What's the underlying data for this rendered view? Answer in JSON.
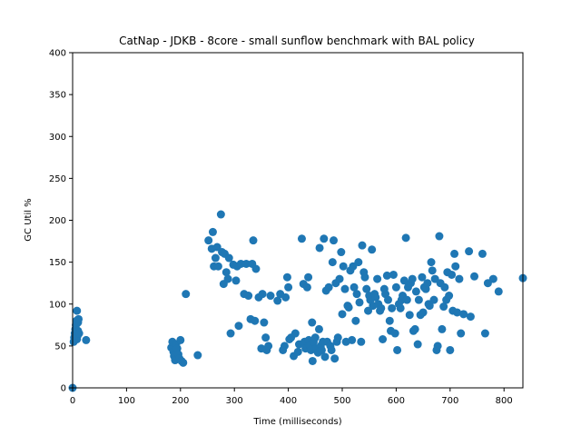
{
  "chart_data": {
    "type": "scatter",
    "title": "CatNap - JDKB - 8core -  small sunflow benchmark with BAL policy",
    "xlabel": "Time (milliseconds)",
    "ylabel": "GC Util %",
    "xlim": [
      0,
      835
    ],
    "ylim": [
      0,
      400
    ],
    "xticks": [
      0,
      100,
      200,
      300,
      400,
      500,
      600,
      700,
      800
    ],
    "yticks": [
      0,
      50,
      100,
      150,
      200,
      250,
      300,
      350,
      400
    ],
    "grid": false,
    "marker_color": "#1f77b4",
    "series": [
      {
        "points": [
          [
            0,
            0
          ],
          [
            2,
            55
          ],
          [
            3,
            60
          ],
          [
            4,
            65
          ],
          [
            5,
            70
          ],
          [
            6,
            75
          ],
          [
            7,
            80
          ],
          [
            8,
            92
          ],
          [
            8,
            58
          ],
          [
            9,
            62
          ],
          [
            10,
            68
          ],
          [
            10,
            78
          ],
          [
            11,
            82
          ],
          [
            12,
            65
          ],
          [
            25,
            57
          ],
          [
            183,
            48
          ],
          [
            185,
            55
          ],
          [
            187,
            43
          ],
          [
            188,
            38
          ],
          [
            190,
            33
          ],
          [
            192,
            52
          ],
          [
            194,
            47
          ],
          [
            196,
            40
          ],
          [
            198,
            35
          ],
          [
            200,
            57
          ],
          [
            202,
            32
          ],
          [
            205,
            30
          ],
          [
            210,
            112
          ],
          [
            232,
            39
          ],
          [
            252,
            176
          ],
          [
            258,
            166
          ],
          [
            260,
            186
          ],
          [
            262,
            145
          ],
          [
            265,
            155
          ],
          [
            268,
            168
          ],
          [
            270,
            145
          ],
          [
            275,
            207
          ],
          [
            277,
            162
          ],
          [
            280,
            124
          ],
          [
            282,
            160
          ],
          [
            285,
            138
          ],
          [
            288,
            130
          ],
          [
            290,
            155
          ],
          [
            293,
            65
          ],
          [
            298,
            147
          ],
          [
            303,
            128
          ],
          [
            305,
            145
          ],
          [
            308,
            74
          ],
          [
            312,
            148
          ],
          [
            318,
            112
          ],
          [
            322,
            148
          ],
          [
            326,
            110
          ],
          [
            330,
            82
          ],
          [
            333,
            148
          ],
          [
            335,
            176
          ],
          [
            338,
            80
          ],
          [
            340,
            142
          ],
          [
            345,
            108
          ],
          [
            350,
            47
          ],
          [
            352,
            112
          ],
          [
            355,
            78
          ],
          [
            358,
            60
          ],
          [
            360,
            45
          ],
          [
            363,
            50
          ],
          [
            367,
            110
          ],
          [
            380,
            104
          ],
          [
            385,
            112
          ],
          [
            390,
            45
          ],
          [
            393,
            50
          ],
          [
            395,
            108
          ],
          [
            398,
            132
          ],
          [
            400,
            120
          ],
          [
            402,
            58
          ],
          [
            405,
            60
          ],
          [
            410,
            38
          ],
          [
            413,
            65
          ],
          [
            418,
            43
          ],
          [
            420,
            52
          ],
          [
            425,
            178
          ],
          [
            428,
            124
          ],
          [
            430,
            55
          ],
          [
            432,
            47
          ],
          [
            435,
            120
          ],
          [
            437,
            132
          ],
          [
            438,
            57
          ],
          [
            440,
            50
          ],
          [
            442,
            45
          ],
          [
            444,
            78
          ],
          [
            445,
            32
          ],
          [
            447,
            55
          ],
          [
            450,
            60
          ],
          [
            452,
            47
          ],
          [
            455,
            42
          ],
          [
            457,
            70
          ],
          [
            458,
            167
          ],
          [
            460,
            50
          ],
          [
            462,
            45
          ],
          [
            464,
            55
          ],
          [
            466,
            178
          ],
          [
            468,
            37
          ],
          [
            470,
            116
          ],
          [
            472,
            55
          ],
          [
            475,
            120
          ],
          [
            478,
            50
          ],
          [
            480,
            45
          ],
          [
            482,
            150
          ],
          [
            484,
            176
          ],
          [
            486,
            35
          ],
          [
            488,
            125
          ],
          [
            490,
            55
          ],
          [
            492,
            60
          ],
          [
            495,
            130
          ],
          [
            498,
            162
          ],
          [
            500,
            88
          ],
          [
            502,
            145
          ],
          [
            505,
            118
          ],
          [
            507,
            55
          ],
          [
            510,
            98
          ],
          [
            512,
            96
          ],
          [
            515,
            140
          ],
          [
            518,
            57
          ],
          [
            520,
            145
          ],
          [
            522,
            120
          ],
          [
            525,
            80
          ],
          [
            527,
            112
          ],
          [
            530,
            150
          ],
          [
            532,
            102
          ],
          [
            535,
            55
          ],
          [
            537,
            170
          ],
          [
            540,
            138
          ],
          [
            542,
            132
          ],
          [
            545,
            118
          ],
          [
            548,
            92
          ],
          [
            550,
            110
          ],
          [
            552,
            105
          ],
          [
            555,
            165
          ],
          [
            557,
            98
          ],
          [
            560,
            112
          ],
          [
            562,
            108
          ],
          [
            565,
            130
          ],
          [
            567,
            100
          ],
          [
            570,
            92
          ],
          [
            572,
            95
          ],
          [
            575,
            58
          ],
          [
            578,
            118
          ],
          [
            580,
            112
          ],
          [
            583,
            134
          ],
          [
            585,
            105
          ],
          [
            588,
            80
          ],
          [
            590,
            68
          ],
          [
            592,
            95
          ],
          [
            595,
            135
          ],
          [
            598,
            65
          ],
          [
            600,
            120
          ],
          [
            602,
            45
          ],
          [
            605,
            100
          ],
          [
            608,
            95
          ],
          [
            610,
            105
          ],
          [
            612,
            110
          ],
          [
            615,
            128
          ],
          [
            618,
            179
          ],
          [
            620,
            105
          ],
          [
            622,
            120
          ],
          [
            625,
            87
          ],
          [
            627,
            125
          ],
          [
            630,
            130
          ],
          [
            632,
            68
          ],
          [
            635,
            70
          ],
          [
            637,
            115
          ],
          [
            640,
            52
          ],
          [
            642,
            105
          ],
          [
            645,
            87
          ],
          [
            648,
            132
          ],
          [
            650,
            90
          ],
          [
            652,
            120
          ],
          [
            655,
            118
          ],
          [
            658,
            125
          ],
          [
            660,
            100
          ],
          [
            662,
            98
          ],
          [
            665,
            150
          ],
          [
            667,
            140
          ],
          [
            670,
            105
          ],
          [
            672,
            130
          ],
          [
            675,
            45
          ],
          [
            677,
            50
          ],
          [
            680,
            181
          ],
          [
            682,
            125
          ],
          [
            685,
            70
          ],
          [
            688,
            97
          ],
          [
            690,
            120
          ],
          [
            693,
            105
          ],
          [
            695,
            138
          ],
          [
            698,
            110
          ],
          [
            700,
            45
          ],
          [
            703,
            135
          ],
          [
            705,
            92
          ],
          [
            708,
            160
          ],
          [
            710,
            145
          ],
          [
            713,
            90
          ],
          [
            717,
            130
          ],
          [
            720,
            65
          ],
          [
            725,
            88
          ],
          [
            735,
            163
          ],
          [
            738,
            85
          ],
          [
            745,
            133
          ],
          [
            760,
            160
          ],
          [
            765,
            65
          ],
          [
            770,
            125
          ],
          [
            780,
            130
          ],
          [
            790,
            115
          ],
          [
            835,
            131
          ]
        ]
      }
    ]
  }
}
